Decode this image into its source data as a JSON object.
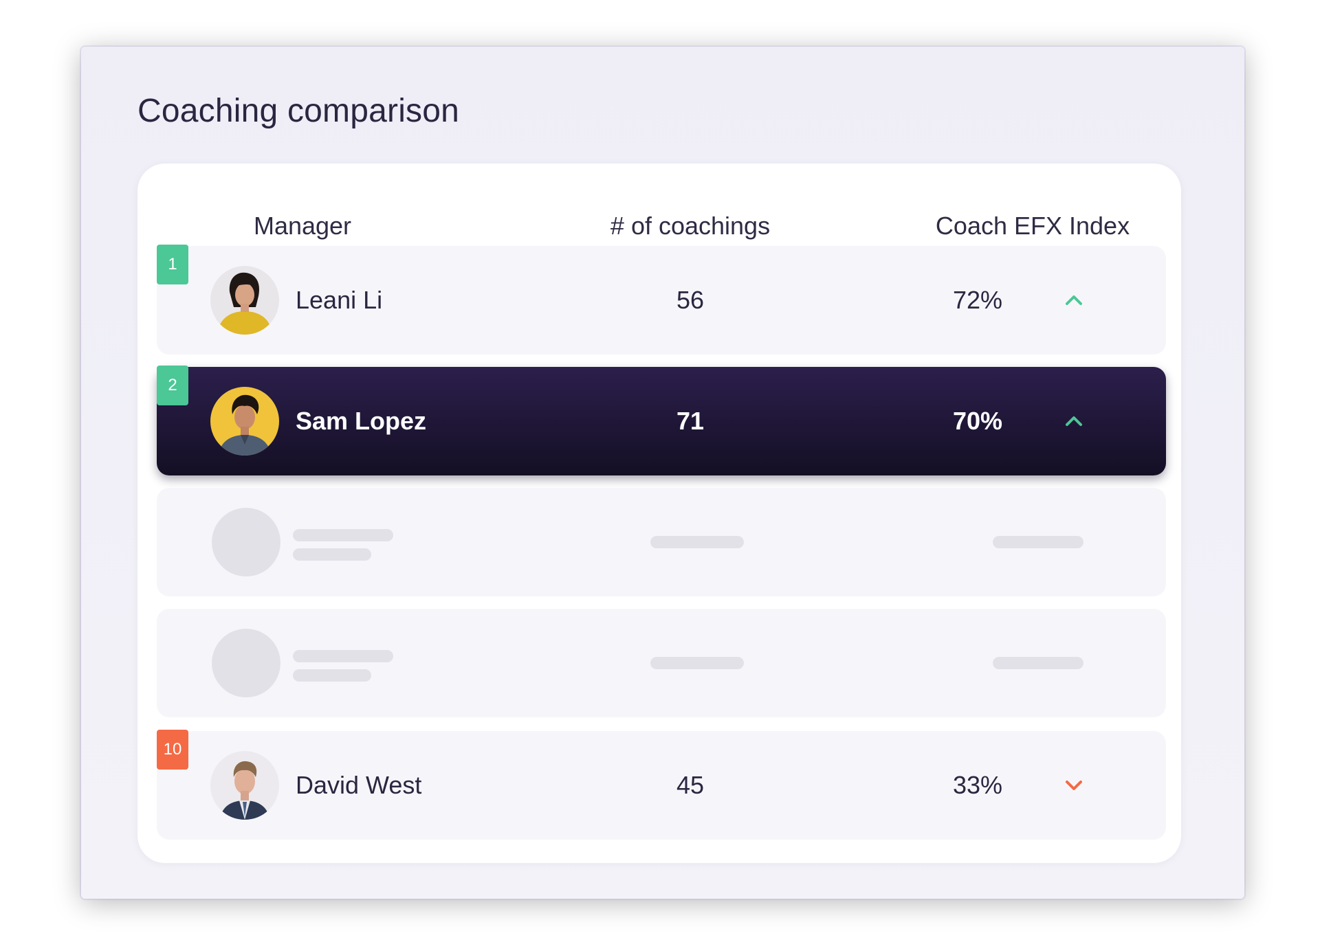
{
  "title": "Coaching comparison",
  "columns": {
    "manager": "Manager",
    "coachings": "# of coachings",
    "index": "Coach EFX Index"
  },
  "rows": [
    {
      "rank": "1",
      "name": "Leani Li",
      "coachings": "56",
      "index": "72%",
      "trend": "up",
      "highlighted": false,
      "avatar_icon": "portrait-leani-li"
    },
    {
      "rank": "2",
      "name": "Sam Lopez",
      "coachings": "71",
      "index": "70%",
      "trend": "up",
      "highlighted": true,
      "avatar_icon": "portrait-sam-lopez"
    },
    {
      "rank": "10",
      "name": "David West",
      "coachings": "45",
      "index": "33%",
      "trend": "down",
      "highlighted": false,
      "avatar_icon": "portrait-david-west"
    }
  ],
  "placeholder_rows": 2,
  "colors": {
    "rank_top": "#4cc796",
    "rank_bottom": "#f46a45",
    "trend_up": "#4cc796",
    "trend_down": "#f46a45",
    "highlight_row": "#1e1535",
    "text": "#2a2640"
  }
}
